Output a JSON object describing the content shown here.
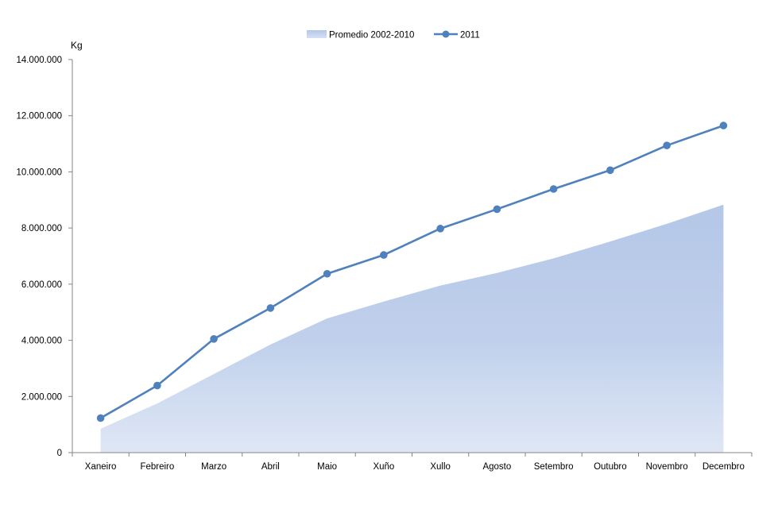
{
  "chart_data": {
    "type": "line",
    "title": "",
    "xlabel": "",
    "ylabel": "Kg",
    "ylim": [
      0,
      14000000
    ],
    "ytick_values": [
      0,
      2000000,
      4000000,
      6000000,
      8000000,
      10000000,
      12000000,
      14000000
    ],
    "ytick_labels": [
      "0",
      "2.000.000",
      "4.000.000",
      "6.000.000",
      "8.000.000",
      "10.000.000",
      "12.000.000",
      "14.000.000"
    ],
    "categories": [
      "Xaneiro",
      "Febreiro",
      "Marzo",
      "Abril",
      "Maio",
      "Xuño",
      "Xullo",
      "Agosto",
      "Setembro",
      "Outubro",
      "Novembro",
      "Decembro"
    ],
    "grid": false,
    "legend_position": "top-center",
    "series": [
      {
        "name": "Promedio 2002-2010",
        "kind": "area",
        "color": "#b4c7e7",
        "values": [
          850000,
          1750000,
          2800000,
          3850000,
          4780000,
          5380000,
          5950000,
          6400000,
          6920000,
          7520000,
          8150000,
          8830000
        ]
      },
      {
        "name": "2011",
        "kind": "line",
        "color": "#4f81bd",
        "values": [
          1230000,
          2390000,
          4050000,
          5150000,
          6370000,
          7040000,
          7980000,
          8670000,
          9390000,
          10060000,
          10940000,
          11650000
        ]
      }
    ]
  }
}
